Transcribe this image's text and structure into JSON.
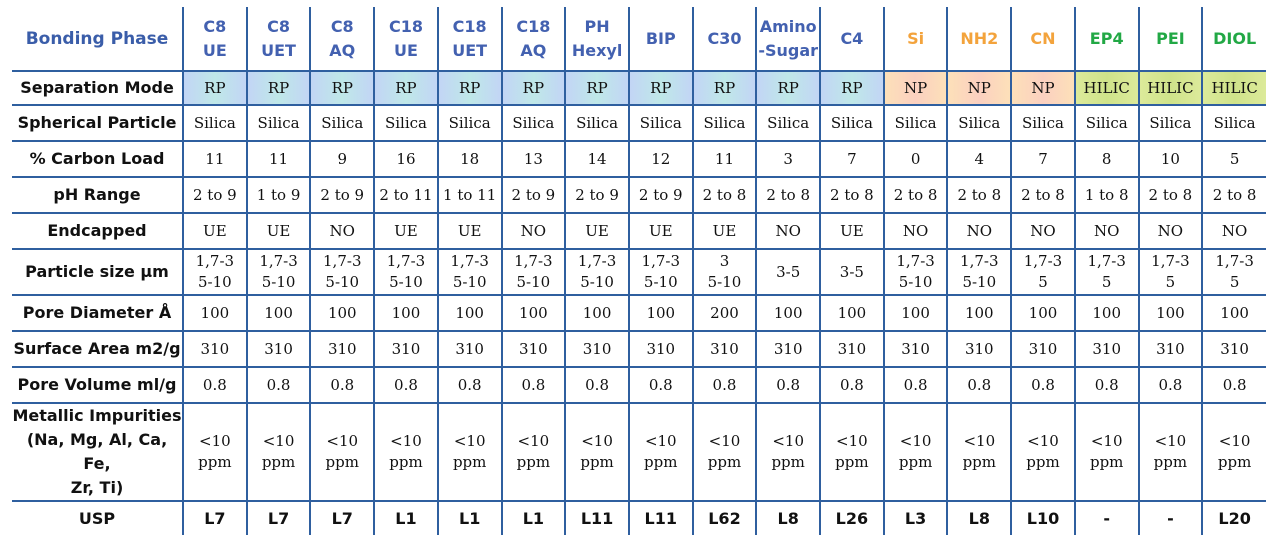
{
  "table": {
    "corner_label": "Bonding Phase",
    "columns": [
      {
        "line1": "C8",
        "line2": "UE",
        "group": "rp"
      },
      {
        "line1": "C8",
        "line2": "UET",
        "group": "rp"
      },
      {
        "line1": "C8",
        "line2": "AQ",
        "group": "rp"
      },
      {
        "line1": "C18",
        "line2": "UE",
        "group": "rp"
      },
      {
        "line1": "C18",
        "line2": "UET",
        "group": "rp"
      },
      {
        "line1": "C18",
        "line2": "AQ",
        "group": "rp"
      },
      {
        "line1": "PH",
        "line2": "Hexyl",
        "group": "rp"
      },
      {
        "line1": "BIP",
        "line2": "",
        "group": "rp"
      },
      {
        "line1": "C30",
        "line2": "",
        "group": "rp"
      },
      {
        "line1": "Amino",
        "line2": "-Sugar",
        "group": "rp"
      },
      {
        "line1": "C4",
        "line2": "",
        "group": "rp"
      },
      {
        "line1": "Si",
        "line2": "",
        "group": "np"
      },
      {
        "line1": "NH2",
        "line2": "",
        "group": "np"
      },
      {
        "line1": "CN",
        "line2": "",
        "group": "np"
      },
      {
        "line1": "EP4",
        "line2": "",
        "group": "hilic"
      },
      {
        "line1": "PEI",
        "line2": "",
        "group": "hilic"
      },
      {
        "line1": "DIOL",
        "line2": "",
        "group": "hilic"
      }
    ],
    "rows": [
      {
        "label": [
          "Separation Mode"
        ],
        "kind": "mode",
        "values": [
          [
            "RP"
          ],
          [
            "RP"
          ],
          [
            "RP"
          ],
          [
            "RP"
          ],
          [
            "RP"
          ],
          [
            "RP"
          ],
          [
            "RP"
          ],
          [
            "RP"
          ],
          [
            "RP"
          ],
          [
            "RP"
          ],
          [
            "RP"
          ],
          [
            "NP"
          ],
          [
            "NP"
          ],
          [
            "NP"
          ],
          [
            "HILIC"
          ],
          [
            "HILIC"
          ],
          [
            "HILIC"
          ]
        ]
      },
      {
        "label": [
          "Spherical Particle"
        ],
        "kind": "val",
        "values": [
          [
            "Silica"
          ],
          [
            "Silica"
          ],
          [
            "Silica"
          ],
          [
            "Silica"
          ],
          [
            "Silica"
          ],
          [
            "Silica"
          ],
          [
            "Silica"
          ],
          [
            "Silica"
          ],
          [
            "Silica"
          ],
          [
            "Silica"
          ],
          [
            "Silica"
          ],
          [
            "Silica"
          ],
          [
            "Silica"
          ],
          [
            "Silica"
          ],
          [
            "Silica"
          ],
          [
            "Silica"
          ],
          [
            "Silica"
          ]
        ]
      },
      {
        "label": [
          "% Carbon Load"
        ],
        "kind": "val",
        "values": [
          [
            "11"
          ],
          [
            "11"
          ],
          [
            "9"
          ],
          [
            "16"
          ],
          [
            "18"
          ],
          [
            "13"
          ],
          [
            "14"
          ],
          [
            "12"
          ],
          [
            "11"
          ],
          [
            "3"
          ],
          [
            "7"
          ],
          [
            "0"
          ],
          [
            "4"
          ],
          [
            "7"
          ],
          [
            "8"
          ],
          [
            "10"
          ],
          [
            "5"
          ]
        ]
      },
      {
        "label": [
          "pH Range"
        ],
        "kind": "val",
        "values": [
          [
            "2 to 9"
          ],
          [
            "1 to 9"
          ],
          [
            "2 to 9"
          ],
          [
            "2 to 11"
          ],
          [
            "1 to 11"
          ],
          [
            "2 to 9"
          ],
          [
            "2 to 9"
          ],
          [
            "2 to 9"
          ],
          [
            "2 to 8"
          ],
          [
            "2 to 8"
          ],
          [
            "2 to 8"
          ],
          [
            "2 to 8"
          ],
          [
            "2 to 8"
          ],
          [
            "2 to 8"
          ],
          [
            "1 to 8"
          ],
          [
            "2 to 8"
          ],
          [
            "2 to 8"
          ]
        ]
      },
      {
        "label": [
          "Endcapped"
        ],
        "kind": "val",
        "values": [
          [
            "UE"
          ],
          [
            "UE"
          ],
          [
            "NO"
          ],
          [
            "UE"
          ],
          [
            "UE"
          ],
          [
            "NO"
          ],
          [
            "UE"
          ],
          [
            "UE"
          ],
          [
            "UE"
          ],
          [
            "NO"
          ],
          [
            "UE"
          ],
          [
            "NO"
          ],
          [
            "NO"
          ],
          [
            "NO"
          ],
          [
            "NO"
          ],
          [
            "NO"
          ],
          [
            "NO"
          ]
        ]
      },
      {
        "label": [
          "Particle size µm"
        ],
        "kind": "val",
        "values": [
          [
            "1,7-3",
            "5-10"
          ],
          [
            "1,7-3",
            "5-10"
          ],
          [
            "1,7-3",
            "5-10"
          ],
          [
            "1,7-3",
            "5-10"
          ],
          [
            "1,7-3",
            "5-10"
          ],
          [
            "1,7-3",
            "5-10"
          ],
          [
            "1,7-3",
            "5-10"
          ],
          [
            "1,7-3",
            "5-10"
          ],
          [
            "3",
            "5-10"
          ],
          [
            "3-5"
          ],
          [
            "3-5"
          ],
          [
            "1,7-3",
            "5-10"
          ],
          [
            "1,7-3",
            "5-10"
          ],
          [
            "1,7-3",
            "5"
          ],
          [
            "1,7-3",
            "5"
          ],
          [
            "1,7-3",
            "5"
          ],
          [
            "1,7-3",
            "5"
          ]
        ]
      },
      {
        "label": [
          "Pore Diameter Å"
        ],
        "kind": "val",
        "values": [
          [
            "100"
          ],
          [
            "100"
          ],
          [
            "100"
          ],
          [
            "100"
          ],
          [
            "100"
          ],
          [
            "100"
          ],
          [
            "100"
          ],
          [
            "100"
          ],
          [
            "200"
          ],
          [
            "100"
          ],
          [
            "100"
          ],
          [
            "100"
          ],
          [
            "100"
          ],
          [
            "100"
          ],
          [
            "100"
          ],
          [
            "100"
          ],
          [
            "100"
          ]
        ]
      },
      {
        "label": [
          "Surface Area m2/g"
        ],
        "kind": "val",
        "values": [
          [
            "310"
          ],
          [
            "310"
          ],
          [
            "310"
          ],
          [
            "310"
          ],
          [
            "310"
          ],
          [
            "310"
          ],
          [
            "310"
          ],
          [
            "310"
          ],
          [
            "310"
          ],
          [
            "310"
          ],
          [
            "310"
          ],
          [
            "310"
          ],
          [
            "310"
          ],
          [
            "310"
          ],
          [
            "310"
          ],
          [
            "310"
          ],
          [
            "310"
          ]
        ]
      },
      {
        "label": [
          "Pore Volume ml/g"
        ],
        "kind": "val",
        "values": [
          [
            "0.8"
          ],
          [
            "0.8"
          ],
          [
            "0.8"
          ],
          [
            "0.8"
          ],
          [
            "0.8"
          ],
          [
            "0.8"
          ],
          [
            "0.8"
          ],
          [
            "0.8"
          ],
          [
            "0.8"
          ],
          [
            "0.8"
          ],
          [
            "0.8"
          ],
          [
            "0.8"
          ],
          [
            "0.8"
          ],
          [
            "0.8"
          ],
          [
            "0.8"
          ],
          [
            "0.8"
          ],
          [
            "0.8"
          ]
        ]
      },
      {
        "label": [
          "Metallic Impurities",
          "(Na, Mg, Al, Ca, Fe,",
          "Zr, Ti)"
        ],
        "kind": "val",
        "values": [
          [
            "<10",
            "ppm"
          ],
          [
            "<10",
            "ppm"
          ],
          [
            "<10",
            "ppm"
          ],
          [
            "<10",
            "ppm"
          ],
          [
            "<10",
            "ppm"
          ],
          [
            "<10",
            "ppm"
          ],
          [
            "<10",
            "ppm"
          ],
          [
            "<10",
            "ppm"
          ],
          [
            "<10",
            "ppm"
          ],
          [
            "<10",
            "ppm"
          ],
          [
            "<10",
            "ppm"
          ],
          [
            "<10",
            "ppm"
          ],
          [
            "<10",
            "ppm"
          ],
          [
            "<10",
            "ppm"
          ],
          [
            "<10",
            "ppm"
          ],
          [
            "<10",
            "ppm"
          ],
          [
            "<10",
            "ppm"
          ]
        ]
      },
      {
        "label": [
          "USP"
        ],
        "kind": "usp",
        "values": [
          [
            "L7"
          ],
          [
            "L7"
          ],
          [
            "L7"
          ],
          [
            "L1"
          ],
          [
            "L1"
          ],
          [
            "L1"
          ],
          [
            "L11"
          ],
          [
            "L11"
          ],
          [
            "L62"
          ],
          [
            "L8"
          ],
          [
            "L26"
          ],
          [
            "L3"
          ],
          [
            "L8"
          ],
          [
            "L10"
          ],
          [
            "-"
          ],
          [
            "-"
          ],
          [
            "L20"
          ]
        ]
      }
    ]
  }
}
